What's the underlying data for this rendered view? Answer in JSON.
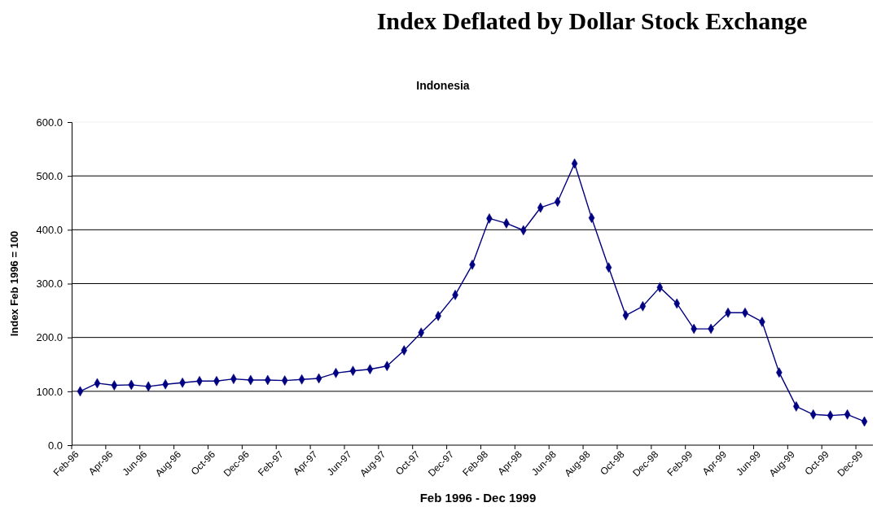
{
  "chart_data": {
    "type": "line",
    "title": "Index Deflated by Dollar Stock Exchange",
    "subtitle": "Indonesia",
    "xlabel": "Feb 1996 - Dec 1999",
    "ylabel": "Index Feb 1996 = 100",
    "categories": [
      "Feb-96",
      null,
      "Apr-96",
      null,
      "Jun-96",
      null,
      "Aug-96",
      null,
      "Oct-96",
      null,
      "Dec-96",
      null,
      "Feb-97",
      null,
      "Apr-97",
      null,
      "Jun-97",
      null,
      "Aug-97",
      null,
      "Oct-97",
      null,
      "Dec-97",
      null,
      "Feb-98",
      null,
      "Apr-98",
      null,
      "Jun-98",
      null,
      "Aug-98",
      null,
      "Oct-98",
      null,
      "Dec-98",
      null,
      "Feb-99",
      null,
      "Apr-99",
      null,
      "Jun-99",
      null,
      "Aug-99",
      null,
      "Oct-99",
      null,
      "Dec-99"
    ],
    "values": [
      100,
      115,
      111,
      112,
      109,
      113,
      116,
      119,
      119,
      123,
      121,
      121,
      120,
      122,
      124,
      134,
      138,
      141,
      147,
      176,
      209,
      240,
      279,
      335,
      421,
      412,
      399,
      441,
      452,
      523,
      422,
      330,
      241,
      258,
      293,
      263,
      216,
      216,
      246,
      246,
      229,
      135,
      72,
      57,
      55,
      57,
      44
    ],
    "color": "#000080",
    "marker": "diamond",
    "line_style": "solid",
    "grid": "y",
    "ylim": [
      0,
      600
    ],
    "yticks": [
      {
        "value": 0,
        "label": "0.0"
      },
      {
        "value": 100,
        "label": "100.0"
      },
      {
        "value": 200,
        "label": "200.0"
      },
      {
        "value": 300,
        "label": "300.0"
      },
      {
        "value": 400,
        "label": "400.0"
      },
      {
        "value": 500,
        "label": "500.0"
      },
      {
        "value": 600,
        "label": "600.0"
      }
    ]
  }
}
